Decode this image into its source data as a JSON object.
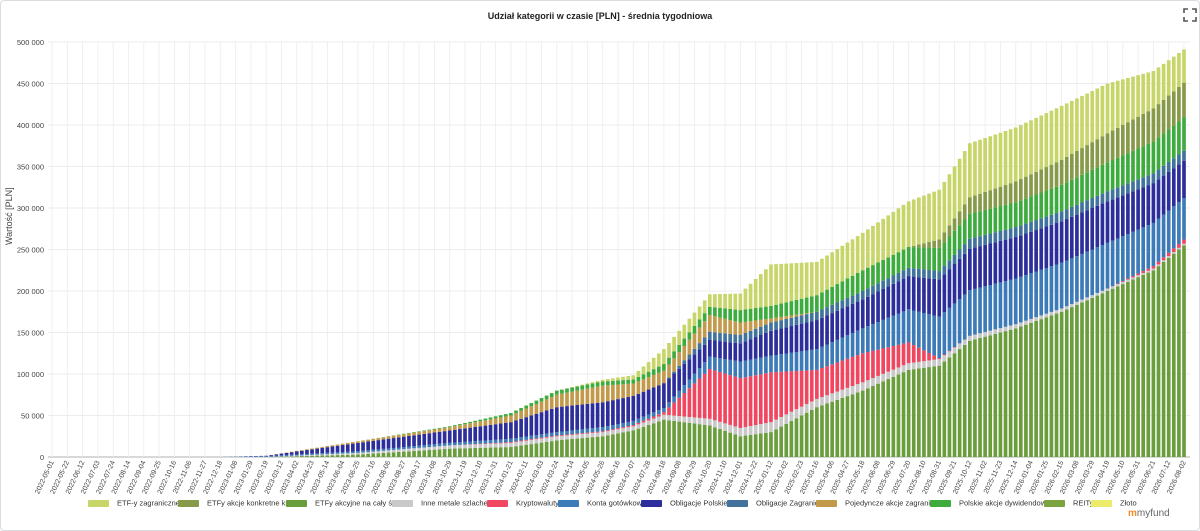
{
  "title": "Udział kategorii w czasie [PLN] - średnia tygodniowa",
  "logo_text": "myfund",
  "chart_data": {
    "type": "bar",
    "stacked": true,
    "ylabel": "Wartość [PLN]",
    "ylim": [
      0,
      500000
    ],
    "yticks": [
      0,
      50000,
      100000,
      150000,
      200000,
      250000,
      300000,
      350000,
      400000,
      450000,
      500000
    ],
    "ytick_labels": [
      "0",
      "50 000",
      "100 000",
      "150 000",
      "200 000",
      "250 000",
      "300 000",
      "350 000",
      "400 000",
      "450 000",
      "500 000"
    ],
    "x_start": "2022-05-01",
    "x_end": "2026-08-02",
    "xtick_labels": [
      "2022-05-01",
      "2022-05-22",
      "2022-06-12",
      "2022-07-03",
      "2022-07-24",
      "2022-08-14",
      "2022-09-04",
      "2022-09-25",
      "2022-10-16",
      "2022-11-06",
      "2022-11-27",
      "2022-12-18",
      "2023-01-08",
      "2023-01-29",
      "2023-02-19",
      "2023-03-12",
      "2023-04-02",
      "2023-04-23",
      "2023-05-14",
      "2023-06-04",
      "2023-06-25",
      "2023-07-16",
      "2023-08-06",
      "2023-08-27",
      "2023-09-17",
      "2023-10-08",
      "2023-10-29",
      "2023-11-19",
      "2023-12-10",
      "2023-12-31",
      "2024-01-21",
      "2024-02-11",
      "2024-03-03",
      "2024-03-24",
      "2024-04-14",
      "2024-05-05",
      "2024-05-26",
      "2024-06-16",
      "2024-07-07",
      "2024-07-28",
      "2024-08-18",
      "2024-09-08",
      "2024-09-29",
      "2024-10-20",
      "2024-11-10",
      "2024-12-01",
      "2024-12-22",
      "2025-01-12",
      "2025-02-02",
      "2025-02-23",
      "2025-03-16",
      "2025-04-06",
      "2025-04-27",
      "2025-05-18",
      "2025-06-08",
      "2025-06-29",
      "2025-07-20",
      "2025-08-10",
      "2025-08-31",
      "2025-09-21",
      "2025-10-12",
      "2025-11-02",
      "2025-11-23",
      "2025-12-14",
      "2026-01-04",
      "2026-01-25",
      "2026-02-15",
      "2026-03-08",
      "2026-03-29",
      "2026-04-19",
      "2026-05-10",
      "2026-05-31",
      "2026-06-21",
      "2026-07-12",
      "2026-08-02"
    ],
    "grid": true,
    "legend_position": "bottom",
    "sample_dates": [
      "2022-05-01",
      "2022-12-18",
      "2023-02-19",
      "2023-06-25",
      "2023-10-29",
      "2024-01-21",
      "2024-03-24",
      "2024-05-26",
      "2024-07-07",
      "2024-08-18",
      "2024-10-20",
      "2024-12-01",
      "2025-01-12",
      "2025-03-16",
      "2025-05-18",
      "2025-07-20",
      "2025-08-31",
      "2025-10-12",
      "2025-12-14",
      "2026-02-15",
      "2026-04-19",
      "2026-06-21",
      "2026-08-02"
    ],
    "series": [
      {
        "name": "ETFy akcyjne na cały świat",
        "color": "#6a9d3c",
        "values": [
          0,
          0,
          0,
          3000,
          10000,
          12000,
          20000,
          25000,
          32000,
          45000,
          38000,
          25000,
          30000,
          60000,
          80000,
          105000,
          110000,
          140000,
          155000,
          175000,
          200000,
          225000,
          255000
        ]
      },
      {
        "name": "Inne metale szlachetne",
        "color": "#c9c9c9",
        "values": [
          0,
          0,
          0,
          2000,
          4000,
          5000,
          5000,
          5000,
          5000,
          6000,
          8000,
          10000,
          12000,
          10000,
          10000,
          8000,
          8000,
          6000,
          5000,
          4000,
          3000,
          2000,
          2000
        ]
      },
      {
        "name": "Kryptowaluty",
        "color": "#f0465f",
        "values": [
          0,
          0,
          0,
          0,
          0,
          1000,
          1000,
          1000,
          1500,
          3000,
          60000,
          60000,
          60000,
          35000,
          35000,
          25000,
          1000,
          0,
          0,
          0,
          0,
          3000,
          5000
        ]
      },
      {
        "name": "Konta gotówkowe",
        "color": "#3d7ab8",
        "values": [
          0,
          0,
          1000,
          2000,
          3000,
          4000,
          4000,
          5000,
          5000,
          5000,
          15000,
          20000,
          20000,
          25000,
          30000,
          40000,
          50000,
          55000,
          55000,
          55000,
          55000,
          52000,
          50000
        ]
      },
      {
        "name": "Obligacje Polskie",
        "color": "#2c2e9c",
        "values": [
          0,
          0,
          500,
          10000,
          15000,
          20000,
          30000,
          30000,
          30000,
          30000,
          20000,
          22000,
          30000,
          35000,
          35000,
          40000,
          45000,
          50000,
          50000,
          50000,
          50000,
          48000,
          45000
        ]
      },
      {
        "name": "Obligacje Zagraniczne",
        "color": "#41739c",
        "values": [
          0,
          0,
          0,
          0,
          0,
          0,
          0,
          0,
          0,
          0,
          10000,
          10000,
          10000,
          10000,
          10000,
          10000,
          10000,
          12000,
          12000,
          12000,
          12000,
          12000,
          12000
        ]
      },
      {
        "name": "Pojedyncze akcje zagraniczne",
        "color": "#c39a4b",
        "values": [
          0,
          0,
          0,
          2000,
          4000,
          8000,
          15000,
          20000,
          15000,
          15000,
          20000,
          15000,
          5000,
          0,
          0,
          0,
          0,
          0,
          0,
          0,
          0,
          0,
          0
        ]
      },
      {
        "name": "Polskie akcje dywidendowe",
        "color": "#3eab3e",
        "values": [
          0,
          0,
          0,
          0,
          1000,
          3000,
          5000,
          5000,
          5000,
          8000,
          10000,
          15000,
          15000,
          20000,
          25000,
          25000,
          28000,
          30000,
          30000,
          32000,
          35000,
          38000,
          40000
        ]
      },
      {
        "name": "ETFy akcje konkretne kraje",
        "color": "#879a4a",
        "values": [
          0,
          0,
          0,
          0,
          0,
          0,
          0,
          0,
          0,
          0,
          0,
          0,
          0,
          0,
          0,
          0,
          10000,
          20000,
          25000,
          30000,
          35000,
          40000,
          42000
        ]
      },
      {
        "name": "ETF-y zagraniczne",
        "color": "#c8d568",
        "values": [
          0,
          0,
          0,
          0,
          0,
          0,
          0,
          2000,
          5000,
          18000,
          15000,
          20000,
          50000,
          40000,
          45000,
          55000,
          60000,
          65000,
          65000,
          65000,
          60000,
          45000,
          40000
        ]
      },
      {
        "name": "REITy",
        "color": "#7ba440",
        "values": [
          0,
          0,
          0,
          0,
          0,
          0,
          0,
          0,
          0,
          0,
          0,
          0,
          0,
          0,
          0,
          0,
          0,
          0,
          0,
          0,
          0,
          0,
          0
        ]
      },
      {
        "name": "Złoto",
        "color": "#ecec6a",
        "values": [
          0,
          0,
          0,
          0,
          0,
          0,
          0,
          0,
          0,
          0,
          0,
          0,
          0,
          0,
          0,
          0,
          0,
          0,
          0,
          0,
          0,
          0,
          0
        ]
      }
    ]
  },
  "legend": [
    {
      "label": "ETF-y zagraniczne",
      "color": "#c8d568"
    },
    {
      "label": "ETFy akcje konkretne kraje",
      "color": "#879a4a"
    },
    {
      "label": "ETFy akcyjne na cały świat",
      "color": "#6a9d3c"
    },
    {
      "label": "Inne metale szlachetne",
      "color": "#c9c9c9"
    },
    {
      "label": "Kryptowaluty",
      "color": "#f0465f"
    },
    {
      "label": "Konta gotówkowe",
      "color": "#3d7ab8"
    },
    {
      "label": "Obligacje Polskie",
      "color": "#2c2e9c"
    },
    {
      "label": "Obligacje Zagraniczne",
      "color": "#41739c"
    },
    {
      "label": "Pojedyncze akcje zagraniczne",
      "color": "#c39a4b"
    },
    {
      "label": "Polskie akcje dywidendowe",
      "color": "#3eab3e"
    },
    {
      "label": "REITy",
      "color": "#7ba440"
    },
    {
      "label": "Złoto",
      "color": "#ecec6a"
    }
  ]
}
